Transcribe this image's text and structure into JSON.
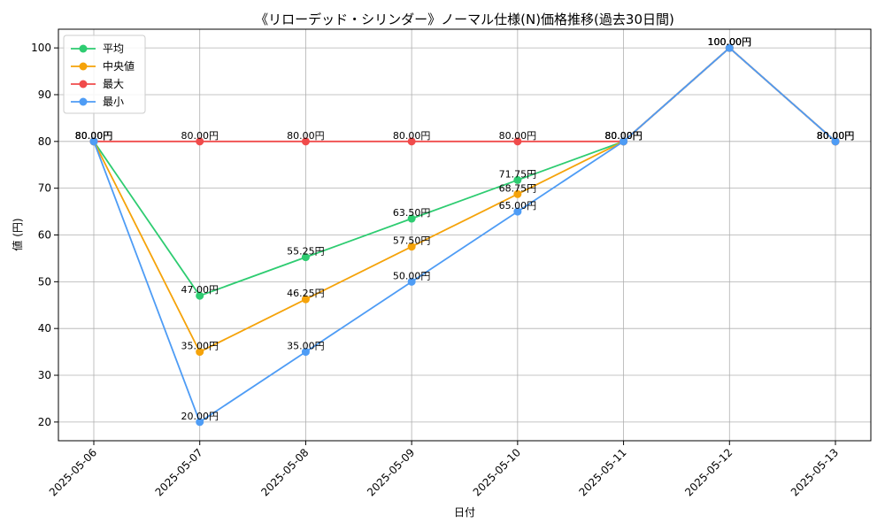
{
  "chart_data": {
    "type": "line",
    "title": "《リローデッド・シリンダー》ノーマル仕様(N)価格推移(過去30日間)",
    "xlabel": "日付",
    "ylabel": "値 (円)",
    "categories": [
      "2025-05-06",
      "2025-05-07",
      "2025-05-08",
      "2025-05-09",
      "2025-05-10",
      "2025-05-11",
      "2025-05-12",
      "2025-05-13"
    ],
    "ylim": [
      16,
      104
    ],
    "yticks": [
      20,
      30,
      40,
      50,
      60,
      70,
      80,
      90,
      100
    ],
    "grid": true,
    "legend_position": "top-left",
    "value_suffix": "円",
    "series": [
      {
        "name": "平均",
        "color": "#2ecc71",
        "values": [
          80,
          47,
          55.25,
          63.5,
          71.75,
          80,
          100,
          80
        ]
      },
      {
        "name": "中央値",
        "color": "#f5a30a",
        "values": [
          80,
          35,
          46.25,
          57.5,
          68.75,
          80,
          100,
          80
        ]
      },
      {
        "name": "最大",
        "color": "#f04b4b",
        "values": [
          80,
          80,
          80,
          80,
          80,
          80,
          100,
          80
        ]
      },
      {
        "name": "最小",
        "color": "#4e9cf5",
        "values": [
          80,
          20,
          35,
          50,
          65,
          80,
          100,
          80
        ]
      }
    ]
  }
}
